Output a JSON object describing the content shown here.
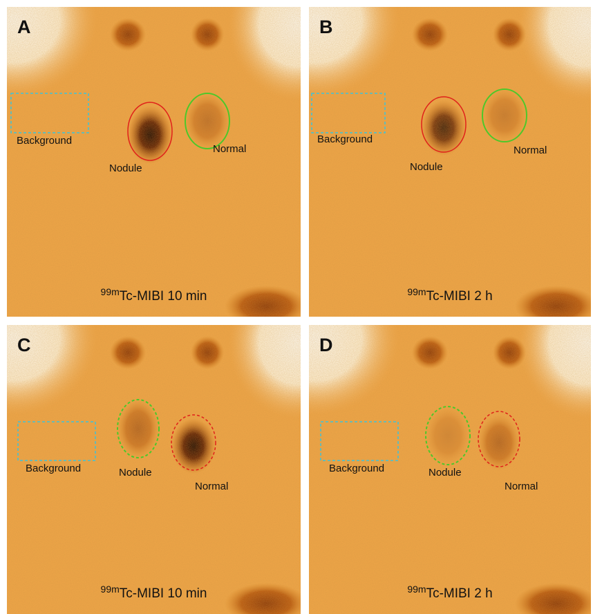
{
  "panels": [
    {
      "letter": "A",
      "background": "Background",
      "nodule": "Nodule",
      "normal": "Normal",
      "caption_sup": "99m",
      "caption": "Tc-MIBI 10 min"
    },
    {
      "letter": "B",
      "background": "Background",
      "nodule": "Nodule",
      "normal": "Normal",
      "caption_sup": "99m",
      "caption": "Tc-MIBI 2 h"
    },
    {
      "letter": "C",
      "background": "Background",
      "nodule": "Nodule",
      "normal": "Normal",
      "caption_sup": "99m",
      "caption": "Tc-MIBI 10 min"
    },
    {
      "letter": "D",
      "background": "Background",
      "nodule": "Nodule",
      "normal": "Normal",
      "caption_sup": "99m",
      "caption": "Tc-MIBI 2 h"
    }
  ]
}
